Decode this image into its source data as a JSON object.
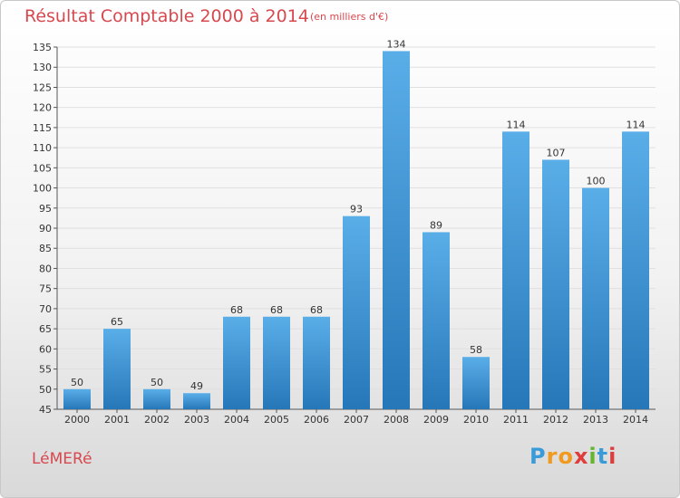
{
  "header": {
    "title": "Résultat Comptable 2000 à 2014",
    "unit": "(en milliers d'€)"
  },
  "footer": {
    "commune": "LéMERé",
    "brand": "Proxiti"
  },
  "colors": {
    "title": "#d8484f",
    "bar": "#4a9fe0",
    "bar_dark": "#2677b8",
    "grid": "#e0e0e0"
  },
  "chart_data": {
    "type": "bar",
    "title": "Résultat Comptable 2000 à 2014",
    "subtitle": "(en milliers d'€)",
    "xlabel": "",
    "ylabel": "",
    "categories": [
      "2000",
      "2001",
      "2002",
      "2003",
      "2004",
      "2005",
      "2006",
      "2007",
      "2008",
      "2009",
      "2010",
      "2011",
      "2012",
      "2013",
      "2014"
    ],
    "values": [
      50,
      65,
      50,
      49,
      68,
      68,
      68,
      93,
      134,
      89,
      58,
      114,
      107,
      100,
      114
    ],
    "ylim": [
      45,
      135
    ],
    "yticks": [
      45,
      50,
      55,
      60,
      65,
      70,
      75,
      80,
      85,
      90,
      95,
      100,
      105,
      110,
      115,
      120,
      125,
      130,
      135
    ],
    "grid": true,
    "legend": "none"
  }
}
